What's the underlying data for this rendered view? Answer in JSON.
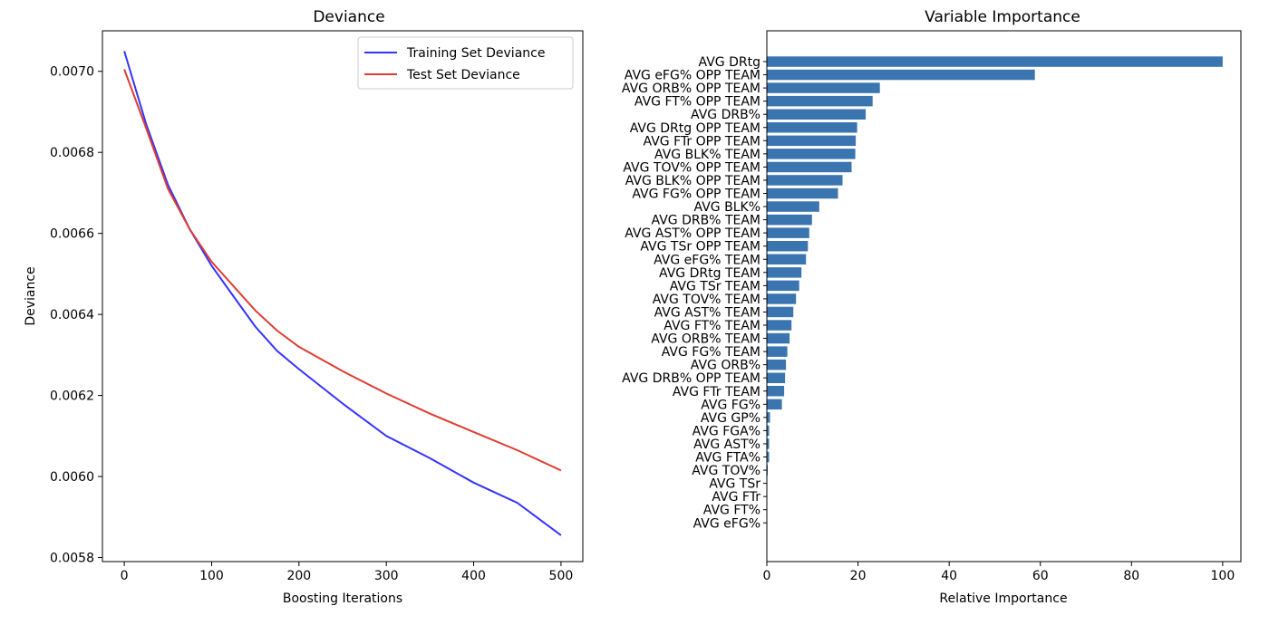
{
  "chart_data": [
    {
      "type": "line",
      "title": "Deviance",
      "xlabel": "Boosting Iterations",
      "ylabel": "Deviance",
      "xlim": [
        -25,
        525
      ],
      "ylim": [
        0.00579,
        0.0071
      ],
      "xticks": [
        0,
        100,
        200,
        300,
        400,
        500
      ],
      "yticks": [
        0.0058,
        0.006,
        0.0062,
        0.0064,
        0.0066,
        0.0068,
        0.007
      ],
      "ytick_labels": [
        "0.0058",
        "0.0060",
        "0.0062",
        "0.0064",
        "0.0066",
        "0.0068",
        "0.0070"
      ],
      "grid": false,
      "legend_position": "top-right",
      "series": [
        {
          "name": "Training Set Deviance",
          "color": "#3333ff",
          "x": [
            0,
            25,
            50,
            75,
            100,
            125,
            150,
            175,
            200,
            250,
            300,
            350,
            400,
            450,
            500
          ],
          "values": [
            0.00705,
            0.00687,
            0.00672,
            0.00661,
            0.00652,
            0.006445,
            0.00637,
            0.00631,
            0.006265,
            0.00618,
            0.0061,
            0.006045,
            0.005985,
            0.005935,
            0.005855
          ]
        },
        {
          "name": "Test Set Deviance",
          "color": "#e03c31",
          "x": [
            0,
            25,
            50,
            75,
            100,
            125,
            150,
            175,
            200,
            250,
            300,
            350,
            400,
            450,
            500
          ],
          "values": [
            0.007005,
            0.00686,
            0.00671,
            0.00661,
            0.00653,
            0.00647,
            0.00641,
            0.00636,
            0.00632,
            0.00626,
            0.006205,
            0.006155,
            0.00611,
            0.006065,
            0.006015
          ]
        }
      ]
    },
    {
      "type": "bar",
      "orientation": "horizontal",
      "title": "Variable Importance",
      "xlabel": "Relative Importance",
      "ylabel": "",
      "xlim": [
        0,
        104
      ],
      "xticks": [
        0,
        20,
        40,
        60,
        80,
        100
      ],
      "grid": false,
      "color": "#3a75b0",
      "categories": [
        "AVG DRtg",
        "AVG eFG% OPP TEAM",
        "AVG ORB% OPP TEAM",
        "AVG FT% OPP TEAM",
        "AVG DRB%",
        "AVG DRtg OPP TEAM",
        "AVG FTr OPP TEAM",
        "AVG BLK% TEAM",
        "AVG TOV% OPP TEAM",
        "AVG BLK% OPP TEAM",
        "AVG FG% OPP TEAM",
        "AVG BLK%",
        "AVG DRB% TEAM",
        "AVG AST% OPP TEAM",
        "AVG TSr OPP TEAM",
        "AVG eFG% TEAM",
        "AVG DRtg TEAM",
        "AVG TSr TEAM",
        "AVG TOV% TEAM",
        "AVG AST% TEAM",
        "AVG FT% TEAM",
        "AVG ORB% TEAM",
        "AVG FG% TEAM",
        "AVG ORB%",
        "AVG DRB% OPP TEAM",
        "AVG FTr TEAM",
        "AVG FG%",
        "AVG GP%",
        "AVG FGA%",
        "AVG AST%",
        "AVG FTA%",
        "AVG TOV%",
        "AVG TSr",
        "AVG FTr",
        "AVG FT%",
        "AVG eFG%"
      ],
      "values": [
        100,
        58.8,
        24.8,
        23.2,
        21.7,
        19.8,
        19.5,
        19.4,
        18.6,
        16.6,
        15.6,
        11.5,
        9.9,
        9.3,
        9.0,
        8.6,
        7.6,
        7.1,
        6.4,
        5.8,
        5.4,
        5.0,
        4.5,
        4.2,
        4.0,
        3.8,
        3.3,
        0.7,
        0.5,
        0.5,
        0.5,
        0.2,
        0.1,
        0.1,
        0.1,
        0.1
      ]
    }
  ]
}
